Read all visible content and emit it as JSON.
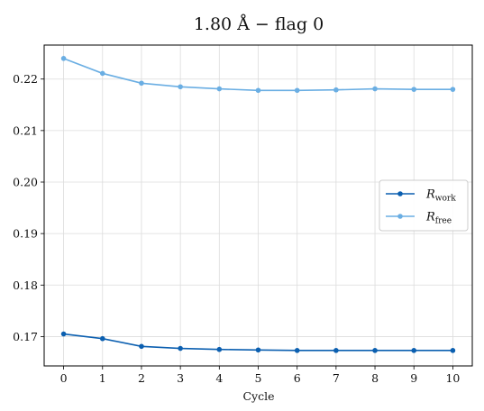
{
  "chart_data": {
    "type": "line",
    "title": "1.80 Å  −  flag 0",
    "xlabel": "Cycle",
    "ylabel": "",
    "x": [
      0,
      1,
      2,
      3,
      4,
      5,
      6,
      7,
      8,
      9,
      10
    ],
    "xlim": [
      -0.5,
      10.5
    ],
    "ylim": [
      0.1643,
      0.2266
    ],
    "yticks": [
      "0.17",
      "0.18",
      "0.19",
      "0.20",
      "0.21",
      "0.22"
    ],
    "xticks": [
      "0",
      "1",
      "2",
      "3",
      "4",
      "5",
      "6",
      "7",
      "8",
      "9",
      "10"
    ],
    "grid": true,
    "legend_position": "right",
    "series": [
      {
        "name": "R_work",
        "name_main": "R",
        "name_sub": "work",
        "color": "#0b5fb0",
        "values": [
          0.1705,
          0.1696,
          0.1681,
          0.1677,
          0.1675,
          0.1674,
          0.1673,
          0.1673,
          0.1673,
          0.1673,
          0.1673
        ]
      },
      {
        "name": "R_free",
        "name_main": "R",
        "name_sub": "free",
        "color": "#6aaee3",
        "values": [
          0.224,
          0.2211,
          0.2192,
          0.2185,
          0.2181,
          0.2178,
          0.2178,
          0.2179,
          0.2181,
          0.218,
          0.218
        ]
      }
    ]
  }
}
